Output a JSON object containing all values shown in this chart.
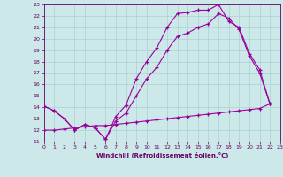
{
  "line1_x": [
    0,
    1,
    2,
    3,
    4,
    5,
    6,
    7,
    8,
    9,
    10,
    11,
    12,
    13,
    14,
    15,
    16,
    17,
    18,
    19,
    20,
    21,
    22
  ],
  "line1_y": [
    14.1,
    13.7,
    13.0,
    12.0,
    12.5,
    12.2,
    11.2,
    13.2,
    14.2,
    16.5,
    18.0,
    19.2,
    21.0,
    22.2,
    22.3,
    22.5,
    22.5,
    23.0,
    21.5,
    21.0,
    18.7,
    17.3,
    14.3
  ],
  "line2_x": [
    0,
    1,
    2,
    3,
    4,
    5,
    6,
    7,
    8,
    9,
    10,
    11,
    12,
    13,
    14,
    15,
    16,
    17,
    18,
    19,
    20,
    21,
    22
  ],
  "line2_y": [
    14.1,
    13.7,
    13.0,
    12.0,
    12.5,
    12.2,
    11.2,
    12.8,
    13.5,
    15.0,
    16.5,
    17.5,
    19.0,
    20.2,
    20.5,
    21.0,
    21.3,
    22.2,
    21.8,
    20.8,
    18.5,
    17.0,
    14.3
  ],
  "line3_x": [
    0,
    1,
    2,
    3,
    4,
    5,
    6,
    7,
    8,
    9,
    10,
    11,
    12,
    13,
    14,
    15,
    16,
    17,
    18,
    19,
    20,
    21,
    22
  ],
  "line3_y": [
    12.0,
    12.0,
    12.1,
    12.2,
    12.3,
    12.4,
    12.4,
    12.5,
    12.6,
    12.7,
    12.8,
    12.9,
    13.0,
    13.1,
    13.2,
    13.3,
    13.4,
    13.5,
    13.6,
    13.7,
    13.8,
    13.9,
    14.3
  ],
  "line_color": "#990099",
  "bg_color": "#cce8e8",
  "grid_color": "#aad0d0",
  "xlabel": "Windchill (Refroidissement éolien,°C)",
  "xlabel_color": "#660066",
  "tick_color": "#660066",
  "ylim": [
    11,
    23
  ],
  "xlim": [
    0,
    23
  ],
  "yticks": [
    11,
    12,
    13,
    14,
    15,
    16,
    17,
    18,
    19,
    20,
    21,
    22,
    23
  ],
  "xticks": [
    0,
    1,
    2,
    3,
    4,
    5,
    6,
    7,
    8,
    9,
    10,
    11,
    12,
    13,
    14,
    15,
    16,
    17,
    18,
    19,
    20,
    21,
    22,
    23
  ]
}
